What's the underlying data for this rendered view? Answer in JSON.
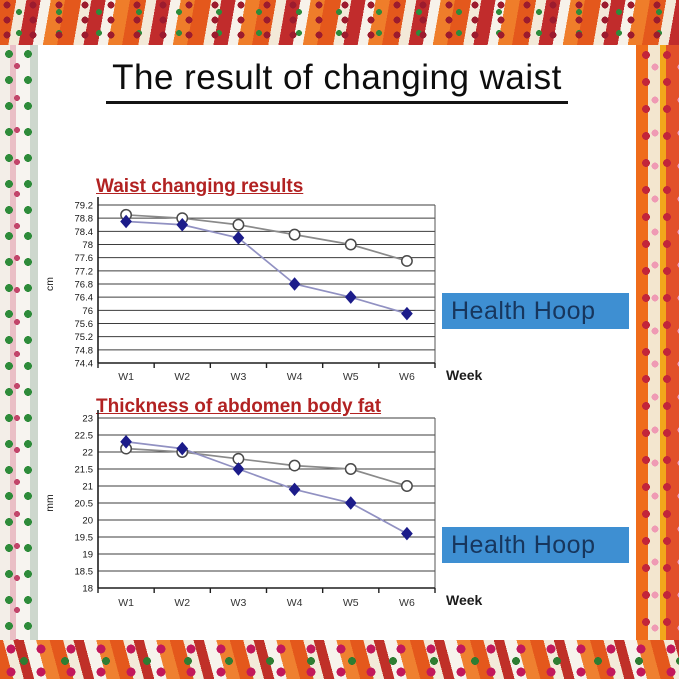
{
  "slide": {
    "title": "The result of changing waist",
    "badge_bg": "#3e8fd2",
    "badge_text_color": "#17365d"
  },
  "chart_data": [
    {
      "type": "line",
      "title": "Waist changing results",
      "title_color": "#b22222",
      "xlabel": "Week",
      "ylabel": "cm",
      "badge": "Health Hoop",
      "categories": [
        "W1",
        "W2",
        "W3",
        "W4",
        "W5",
        "W6"
      ],
      "yticks": [
        "79.2",
        "78.8",
        "78.4",
        "78",
        "77.6",
        "77.2",
        "76.8",
        "76.4",
        "76",
        "75.6",
        "75.2",
        "74.8",
        "74.4"
      ],
      "ylim": [
        74.4,
        79.2
      ],
      "grid": true,
      "legend_position": "none",
      "series": [
        {
          "marker": "circle",
          "marker_fill": "#ffffff",
          "marker_stroke": "#4a4a4a",
          "line_color": "#8a8a8a",
          "values": [
            78.9,
            78.8,
            78.6,
            78.3,
            78.0,
            77.5
          ]
        },
        {
          "marker": "diamond",
          "marker_fill": "#1c1c8a",
          "marker_stroke": "#1c1c8a",
          "line_color": "#9191c2",
          "values": [
            78.7,
            78.6,
            78.2,
            76.8,
            76.4,
            75.9
          ]
        }
      ]
    },
    {
      "type": "line",
      "title": "Thickness of abdomen body fat",
      "title_color": "#b22222",
      "xlabel": "Week",
      "ylabel": "mm",
      "badge": "Health Hoop",
      "categories": [
        "W1",
        "W2",
        "W3",
        "W4",
        "W5",
        "W6"
      ],
      "yticks": [
        "23",
        "22.5",
        "22",
        "21.5",
        "21",
        "20.5",
        "20",
        "19.5",
        "19",
        "18.5",
        "18"
      ],
      "ylim": [
        18,
        23
      ],
      "grid": true,
      "legend_position": "none",
      "series": [
        {
          "marker": "circle",
          "marker_fill": "#ffffff",
          "marker_stroke": "#4a4a4a",
          "line_color": "#8a8a8a",
          "values": [
            22.1,
            22.0,
            21.8,
            21.6,
            21.5,
            21.0
          ]
        },
        {
          "marker": "diamond",
          "marker_fill": "#1c1c8a",
          "marker_stroke": "#1c1c8a",
          "line_color": "#9191c2",
          "values": [
            22.3,
            22.1,
            21.5,
            20.9,
            20.5,
            19.6
          ]
        }
      ]
    }
  ]
}
